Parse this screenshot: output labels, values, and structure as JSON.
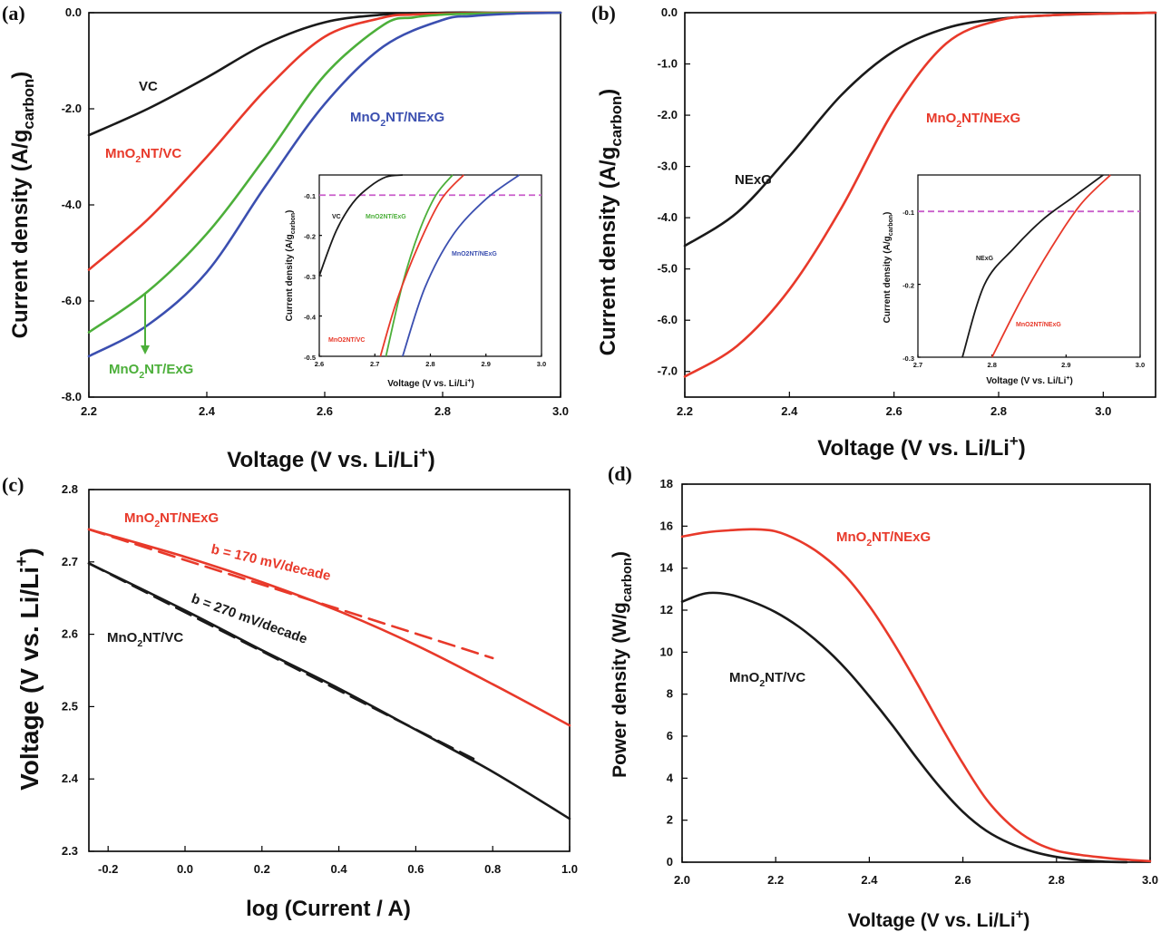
{
  "chart_data": [
    {
      "panel": "(a)",
      "type": "line",
      "xlabel": "Voltage (V vs. Li/Li+)",
      "ylabel": "Current density (A/gcarbon)",
      "xlim": [
        2.2,
        3.0
      ],
      "ylim": [
        -8.0,
        0.0
      ],
      "xticks": [
        "2.2",
        "2.4",
        "2.6",
        "2.8",
        "3.0"
      ],
      "yticks": [
        "0.0",
        "-2.0",
        "-4.0",
        "-6.0",
        "-8.0"
      ],
      "series": [
        {
          "name": "VC",
          "color": "#1a1a1a",
          "x": [
            2.2,
            2.3,
            2.4,
            2.5,
            2.6,
            2.7,
            2.8,
            2.9,
            3.0
          ],
          "y": [
            -2.55,
            -2.0,
            -1.35,
            -0.65,
            -0.2,
            -0.04,
            0.0,
            0.0,
            0.0
          ]
        },
        {
          "name": "MnO2NT/VC",
          "color": "#e8392a",
          "x": [
            2.2,
            2.3,
            2.4,
            2.5,
            2.6,
            2.7,
            2.75,
            2.8,
            2.85,
            2.9,
            3.0
          ],
          "y": [
            -5.35,
            -4.3,
            -3.0,
            -1.6,
            -0.5,
            -0.1,
            -0.04,
            -0.02,
            -0.01,
            0.0,
            0.0
          ]
        },
        {
          "name": "MnO2NT/ExG",
          "color": "#4caf3a",
          "x": [
            2.2,
            2.3,
            2.4,
            2.5,
            2.6,
            2.7,
            2.75,
            2.8,
            2.85,
            2.9,
            3.0
          ],
          "y": [
            -6.65,
            -5.8,
            -4.6,
            -3.0,
            -1.3,
            -0.25,
            -0.1,
            -0.04,
            -0.02,
            -0.01,
            0.0
          ]
        },
        {
          "name": "MnO2NT/NExG",
          "color": "#3b4fb0",
          "x": [
            2.2,
            2.3,
            2.4,
            2.5,
            2.6,
            2.7,
            2.8,
            2.85,
            2.9,
            2.95,
            3.0
          ],
          "y": [
            -7.15,
            -6.5,
            -5.4,
            -3.6,
            -1.9,
            -0.7,
            -0.15,
            -0.07,
            -0.03,
            -0.01,
            0.0
          ]
        }
      ],
      "labels": {
        "vc": "VC",
        "mno2_vc": {
          "pre": "MnO",
          "sub": "2",
          "post": "NT/VC"
        },
        "mno2_nexg": {
          "pre": "MnO",
          "sub": "2",
          "post": "NT/NExG"
        },
        "mno2_exg": {
          "pre": "MnO",
          "sub": "2",
          "post": "NT/ExG"
        }
      },
      "inset": {
        "xlabel": "Voltage (V vs. Li/Li+)",
        "ylabel": "Current density (A/gcarbon)",
        "xlim": [
          2.6,
          3.0
        ],
        "ylim": [
          -0.5,
          -0.05
        ],
        "xticks": [
          "2.6",
          "2.7",
          "2.8",
          "2.9",
          "3.0"
        ],
        "yticks": [
          "-0.1",
          "-0.2",
          "-0.3",
          "-0.4",
          "-0.5"
        ],
        "reference_line": -0.1,
        "reference_color": "#c95ecb",
        "series": [
          {
            "name": "VC",
            "x": [
              2.6,
              2.63,
              2.66,
              2.69,
              2.72,
              2.75
            ],
            "y": [
              -0.3,
              -0.19,
              -0.12,
              -0.08,
              -0.055,
              -0.05
            ]
          },
          {
            "name": "MnO2NT/ExG",
            "x": [
              2.72,
              2.75,
              2.78,
              2.81,
              2.84
            ],
            "y": [
              -0.5,
              -0.32,
              -0.19,
              -0.1,
              -0.05
            ]
          },
          {
            "name": "MnO2NT/VC",
            "x": [
              2.71,
              2.74,
              2.78,
              2.82,
              2.86
            ],
            "y": [
              -0.5,
              -0.36,
              -0.22,
              -0.11,
              -0.05
            ]
          },
          {
            "name": "MnO2NT/NExG",
            "x": [
              2.75,
              2.79,
              2.84,
              2.9,
              2.96
            ],
            "y": [
              -0.5,
              -0.33,
              -0.2,
              -0.11,
              -0.05
            ]
          }
        ],
        "labels": {
          "vc": "VC",
          "exg": "MnO2NT/ExG",
          "mno2vc": "MnO2NT/VC",
          "nexg": "MnO2NT/NExG"
        }
      }
    },
    {
      "panel": "(b)",
      "type": "line",
      "xlabel": "Voltage (V vs. Li/Li+)",
      "ylabel": "Current density (A/gcarbon)",
      "xlim": [
        2.2,
        3.1
      ],
      "ylim": [
        -7.5,
        0.0
      ],
      "xticks": [
        "2.2",
        "2.4",
        "2.6",
        "2.8",
        "3.0"
      ],
      "yticks": [
        "0.0",
        "-1.0",
        "-2.0",
        "-3.0",
        "-4.0",
        "-5.0",
        "-6.0",
        "-7.0"
      ],
      "series": [
        {
          "name": "NExG",
          "color": "#1a1a1a",
          "x": [
            2.2,
            2.3,
            2.4,
            2.5,
            2.6,
            2.7,
            2.8,
            2.9,
            3.0,
            3.1
          ],
          "y": [
            -4.55,
            -3.9,
            -2.8,
            -1.6,
            -0.75,
            -0.3,
            -0.12,
            -0.05,
            -0.02,
            0.0
          ]
        },
        {
          "name": "MnO2NT/NExG",
          "color": "#e8392a",
          "x": [
            2.2,
            2.3,
            2.4,
            2.5,
            2.6,
            2.7,
            2.8,
            2.9,
            3.0,
            3.1
          ],
          "y": [
            -7.1,
            -6.5,
            -5.4,
            -3.8,
            -1.9,
            -0.6,
            -0.15,
            -0.05,
            -0.02,
            0.0
          ]
        }
      ],
      "labels": {
        "nexg": "NExG",
        "mno2_nexg": {
          "pre": "MnO",
          "sub": "2",
          "post": "NT/NExG"
        }
      },
      "inset": {
        "xlabel": "Voltage (V vs. Li/Li+)",
        "ylabel": "Current density (A/gcarbon)",
        "xlim": [
          2.7,
          3.0
        ],
        "ylim": [
          -0.3,
          -0.05
        ],
        "xticks": [
          "2.7",
          "2.8",
          "2.9",
          "3.0"
        ],
        "yticks": [
          "-0.1",
          "-0.2",
          "-0.3"
        ],
        "reference_line": -0.1,
        "reference_color": "#c95ecb",
        "series": [
          {
            "name": "NExG",
            "x": [
              2.76,
              2.79,
              2.83,
              2.87,
              2.91,
              2.95
            ],
            "y": [
              -0.3,
              -0.2,
              -0.15,
              -0.11,
              -0.08,
              -0.05
            ]
          },
          {
            "name": "MnO2NT/NExG",
            "x": [
              2.8,
              2.84,
              2.88,
              2.92,
              2.96
            ],
            "y": [
              -0.3,
              -0.22,
              -0.15,
              -0.09,
              -0.05
            ]
          }
        ],
        "labels": {
          "nexg": "NExG",
          "mno2": "MnO2NT/NExG"
        }
      }
    },
    {
      "panel": "(c)",
      "type": "line",
      "xlabel": "log (Current / A)",
      "ylabel": "Voltage (V vs. Li/Li+)",
      "xlim": [
        -0.25,
        1.0
      ],
      "ylim": [
        2.3,
        2.8
      ],
      "xticks": [
        "-0.2",
        "0.0",
        "0.2",
        "0.4",
        "0.6",
        "0.8",
        "1.0"
      ],
      "yticks": [
        "2.8",
        "2.7",
        "2.6",
        "2.5",
        "2.4",
        "2.3"
      ],
      "series": [
        {
          "name": "MnO2NT/NExG",
          "color": "#e8392a",
          "x": [
            -0.25,
            0.0,
            0.2,
            0.4,
            0.6,
            0.8,
            1.0
          ],
          "y": [
            2.745,
            2.707,
            2.672,
            2.632,
            2.585,
            2.531,
            2.474
          ]
        },
        {
          "name": "MnO2NT/VC",
          "color": "#1a1a1a",
          "x": [
            -0.25,
            0.0,
            0.2,
            0.4,
            0.6,
            0.8,
            1.0
          ],
          "y": [
            2.698,
            2.633,
            2.578,
            2.525,
            2.468,
            2.41,
            2.345
          ]
        },
        {
          "name": "Tafel fit MnO2NT/NExG",
          "color": "#e8392a",
          "dashed": true,
          "x": [
            -0.25,
            0.8
          ],
          "y": [
            2.745,
            2.567
          ]
        },
        {
          "name": "Tafel fit MnO2NT/VC",
          "color": "#1a1a1a",
          "dashed": true,
          "x": [
            -0.25,
            0.75
          ],
          "y": [
            2.698,
            2.428
          ]
        }
      ],
      "labels": {
        "mno2_nexg": {
          "pre": "MnO",
          "sub": "2",
          "post": "NT/NExG"
        },
        "mno2_vc": {
          "pre": "MnO",
          "sub": "2",
          "post": "NT/VC"
        },
        "tafel_nexg": "b = 170 mV/decade",
        "tafel_vc": "b = 270 mV/decade"
      }
    },
    {
      "panel": "(d)",
      "type": "line",
      "xlabel": "Voltage (V vs. Li/Li+)",
      "ylabel": "Power density (W/gcarbon)",
      "xlim": [
        2.0,
        3.0
      ],
      "ylim": [
        0,
        18
      ],
      "xticks": [
        "2.0",
        "2.2",
        "2.4",
        "2.6",
        "2.8",
        "3.0"
      ],
      "yticks": [
        "0",
        "2",
        "4",
        "6",
        "8",
        "10",
        "12",
        "14",
        "16",
        "18"
      ],
      "series": [
        {
          "name": "MnO2NT/NExG",
          "color": "#e8392a",
          "x": [
            2.0,
            2.05,
            2.1,
            2.15,
            2.2,
            2.25,
            2.3,
            2.35,
            2.4,
            2.45,
            2.5,
            2.55,
            2.6,
            2.65,
            2.7,
            2.75,
            2.8,
            2.85,
            2.9,
            2.95,
            3.0
          ],
          "y": [
            15.5,
            15.7,
            15.8,
            15.85,
            15.75,
            15.3,
            14.6,
            13.6,
            12.2,
            10.5,
            8.6,
            6.6,
            4.7,
            3.0,
            1.8,
            1.0,
            0.55,
            0.35,
            0.22,
            0.12,
            0.05
          ]
        },
        {
          "name": "MnO2NT/VC",
          "color": "#1a1a1a",
          "x": [
            2.0,
            2.05,
            2.1,
            2.15,
            2.2,
            2.25,
            2.3,
            2.35,
            2.4,
            2.45,
            2.5,
            2.55,
            2.6,
            2.65,
            2.7,
            2.75,
            2.8,
            2.85,
            2.9,
            2.95
          ],
          "y": [
            12.4,
            12.8,
            12.75,
            12.4,
            11.9,
            11.2,
            10.3,
            9.2,
            7.9,
            6.5,
            5.0,
            3.6,
            2.4,
            1.5,
            0.9,
            0.5,
            0.25,
            0.1,
            0.03,
            0.0
          ]
        }
      ],
      "labels": {
        "mno2_nexg": {
          "pre": "MnO",
          "sub": "2",
          "post": "NT/NExG"
        },
        "mno2_vc": {
          "pre": "MnO",
          "sub": "2",
          "post": "NT/VC"
        }
      }
    }
  ]
}
